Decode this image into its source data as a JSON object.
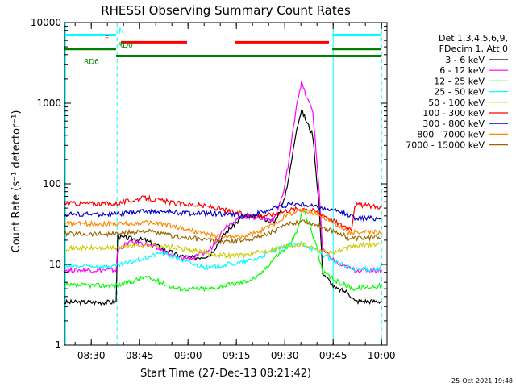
{
  "chart_data": {
    "type": "line",
    "title": "RHESSI Observing Summary Count Rates",
    "xlabel": "Start Time (27-Dec-13 08:21:42)",
    "ylabel": "Count Rate (s⁻¹ detector⁻¹)",
    "y_scale": "log",
    "ylim": [
      1,
      10000
    ],
    "xlim_minutes": [
      0,
      100
    ],
    "x_ticks": [
      "08:30",
      "08:45",
      "09:00",
      "09:15",
      "09:30",
      "09:45",
      "10:00"
    ],
    "x_tick_minutes": [
      8.3,
      23.3,
      38.3,
      53.3,
      68.3,
      83.3,
      98.3
    ],
    "y_ticks": [
      "1",
      "10",
      "100",
      "1000",
      "10000"
    ],
    "y_tick_values": [
      1,
      10,
      100,
      1000,
      10000
    ],
    "legend_header": [
      "Det 1,3,4,5,6,9,",
      "FDecim 1, Att 0"
    ],
    "legend_placement": "right",
    "timestamp": "25-Oct-2021 19:48",
    "vertical_lines_minutes": [
      0.3,
      16.3,
      83.3,
      98.3
    ],
    "state_bars": [
      {
        "label": "N",
        "color": "#00ffff",
        "segments": [
          [
            0.3,
            16.0
          ],
          [
            83.3,
            98.3
          ]
        ],
        "level": 7000
      },
      {
        "label": "F",
        "color": "#ff0000",
        "segments": [
          [
            17.5,
            38.0
          ],
          [
            53.0,
            82.0
          ]
        ],
        "level": 5700
      },
      {
        "label": "RD0",
        "color": "#008000",
        "segments": [
          [
            0,
            16.0
          ],
          [
            83.0,
            98.3
          ]
        ],
        "level": 4700
      },
      {
        "label": "RD6",
        "color": "#008000",
        "segments": [
          [
            16.0,
            25.0
          ],
          [
            25.0,
            66.0
          ],
          [
            66.0,
            90.0
          ],
          [
            90.0,
            98.3
          ]
        ],
        "level": 3850
      }
    ],
    "series": [
      {
        "name": "3 - 6 keV",
        "color": "#000000",
        "values": [
          [
            0,
            3.4
          ],
          [
            16,
            3.4
          ],
          [
            16.5,
            22
          ],
          [
            20,
            21
          ],
          [
            25,
            20
          ],
          [
            30,
            16
          ],
          [
            35,
            13
          ],
          [
            40,
            12
          ],
          [
            45,
            13
          ],
          [
            50,
            25
          ],
          [
            55,
            38
          ],
          [
            60,
            40
          ],
          [
            65,
            33
          ],
          [
            68,
            60
          ],
          [
            70,
            150
          ],
          [
            72,
            500
          ],
          [
            73.5,
            820
          ],
          [
            75,
            600
          ],
          [
            77,
            400
          ],
          [
            79,
            50
          ],
          [
            80,
            8
          ],
          [
            84,
            5
          ],
          [
            88,
            4.5
          ],
          [
            90,
            3.5
          ],
          [
            98.3,
            3.5
          ]
        ]
      },
      {
        "name": "6 - 12 keV",
        "color": "#ff00ff",
        "values": [
          [
            0,
            8.5
          ],
          [
            16,
            8.5
          ],
          [
            16.5,
            15
          ],
          [
            20,
            19
          ],
          [
            25,
            18
          ],
          [
            30,
            15
          ],
          [
            35,
            12
          ],
          [
            40,
            12
          ],
          [
            45,
            15
          ],
          [
            50,
            30
          ],
          [
            55,
            40
          ],
          [
            60,
            38
          ],
          [
            65,
            36
          ],
          [
            68,
            80
          ],
          [
            70,
            250
          ],
          [
            72,
            1000
          ],
          [
            73.5,
            1800
          ],
          [
            75,
            1200
          ],
          [
            77,
            800
          ],
          [
            79,
            80
          ],
          [
            80,
            15
          ],
          [
            85,
            10
          ],
          [
            90,
            8.5
          ],
          [
            98.3,
            8.5
          ]
        ]
      },
      {
        "name": "12 - 25 keV",
        "color": "#00ff00",
        "values": [
          [
            0,
            5.5
          ],
          [
            16,
            5.5
          ],
          [
            20,
            6
          ],
          [
            25,
            7
          ],
          [
            30,
            6
          ],
          [
            35,
            5
          ],
          [
            40,
            5
          ],
          [
            45,
            5
          ],
          [
            50,
            5.5
          ],
          [
            55,
            6
          ],
          [
            60,
            7
          ],
          [
            65,
            12
          ],
          [
            70,
            18
          ],
          [
            72,
            25
          ],
          [
            74,
            50
          ],
          [
            76,
            30
          ],
          [
            78,
            18
          ],
          [
            80,
            8
          ],
          [
            85,
            6
          ],
          [
            90,
            5
          ],
          [
            98.3,
            5.5
          ]
        ]
      },
      {
        "name": "25 - 50 keV",
        "color": "#00ffff",
        "values": [
          [
            0,
            9.5
          ],
          [
            16,
            9.5
          ],
          [
            18,
            10
          ],
          [
            25,
            12
          ],
          [
            30,
            14
          ],
          [
            35,
            12
          ],
          [
            40,
            10
          ],
          [
            45,
            9
          ],
          [
            50,
            10
          ],
          [
            55,
            10.5
          ],
          [
            60,
            12
          ],
          [
            65,
            15
          ],
          [
            70,
            17
          ],
          [
            74,
            18
          ],
          [
            78,
            15
          ],
          [
            82,
            12
          ],
          [
            86,
            10
          ],
          [
            90,
            8.5
          ],
          [
            98.3,
            9
          ]
        ]
      },
      {
        "name": "50 - 100 keV",
        "color": "#cccc00",
        "values": [
          [
            0,
            16
          ],
          [
            16,
            16
          ],
          [
            20,
            17
          ],
          [
            25,
            17.5
          ],
          [
            30,
            17
          ],
          [
            35,
            16
          ],
          [
            40,
            15
          ],
          [
            45,
            13.5
          ],
          [
            50,
            13
          ],
          [
            55,
            13
          ],
          [
            60,
            14
          ],
          [
            65,
            15.5
          ],
          [
            70,
            17.5
          ],
          [
            74,
            18
          ],
          [
            78,
            16
          ],
          [
            82,
            14
          ],
          [
            86,
            15
          ],
          [
            90,
            17
          ],
          [
            98.3,
            18
          ]
        ]
      },
      {
        "name": "100 - 300 keV",
        "color": "#ff0000",
        "values": [
          [
            0,
            57
          ],
          [
            16,
            57
          ],
          [
            25,
            67
          ],
          [
            35,
            57
          ],
          [
            40,
            55
          ],
          [
            45,
            52
          ],
          [
            50,
            47
          ],
          [
            55,
            42
          ],
          [
            58,
            40
          ],
          [
            60,
            40
          ],
          [
            65,
            42
          ],
          [
            70,
            48
          ],
          [
            75,
            50
          ],
          [
            80,
            42
          ],
          [
            85,
            32
          ],
          [
            89,
            28
          ],
          [
            90,
            55
          ],
          [
            98.3,
            52
          ]
        ]
      },
      {
        "name": "300 - 800 keV",
        "color": "#0000cc",
        "values": [
          [
            0,
            42
          ],
          [
            16,
            42
          ],
          [
            25,
            46
          ],
          [
            30,
            45
          ],
          [
            35,
            44
          ],
          [
            40,
            43
          ],
          [
            45,
            43
          ],
          [
            50,
            42
          ],
          [
            55,
            40
          ],
          [
            58,
            40
          ],
          [
            60,
            43
          ],
          [
            65,
            50
          ],
          [
            70,
            56
          ],
          [
            75,
            55
          ],
          [
            80,
            50
          ],
          [
            85,
            45
          ],
          [
            89,
            40
          ],
          [
            90,
            38
          ],
          [
            98.3,
            37
          ]
        ]
      },
      {
        "name": "800 - 7000 keV",
        "color": "#ff8800",
        "values": [
          [
            0,
            32
          ],
          [
            16,
            32
          ],
          [
            20,
            32
          ],
          [
            25,
            33
          ],
          [
            30,
            32
          ],
          [
            35,
            29
          ],
          [
            40,
            26
          ],
          [
            45,
            23
          ],
          [
            50,
            22
          ],
          [
            55,
            22
          ],
          [
            60,
            25
          ],
          [
            65,
            32
          ],
          [
            70,
            43
          ],
          [
            74,
            47
          ],
          [
            78,
            43
          ],
          [
            82,
            35
          ],
          [
            86,
            28
          ],
          [
            88,
            25
          ],
          [
            90,
            25
          ],
          [
            98.3,
            25
          ]
        ]
      },
      {
        "name": "7000 - 15000 keV",
        "color": "#996600",
        "values": [
          [
            0,
            24
          ],
          [
            16,
            24
          ],
          [
            20,
            25
          ],
          [
            25,
            26
          ],
          [
            30,
            24
          ],
          [
            35,
            22
          ],
          [
            40,
            21
          ],
          [
            45,
            20
          ],
          [
            50,
            19
          ],
          [
            55,
            20
          ],
          [
            60,
            22
          ],
          [
            65,
            26
          ],
          [
            70,
            32
          ],
          [
            74,
            35
          ],
          [
            78,
            31
          ],
          [
            82,
            27
          ],
          [
            86,
            24
          ],
          [
            88,
            21
          ],
          [
            90,
            21
          ],
          [
            98.3,
            22
          ]
        ]
      }
    ]
  }
}
